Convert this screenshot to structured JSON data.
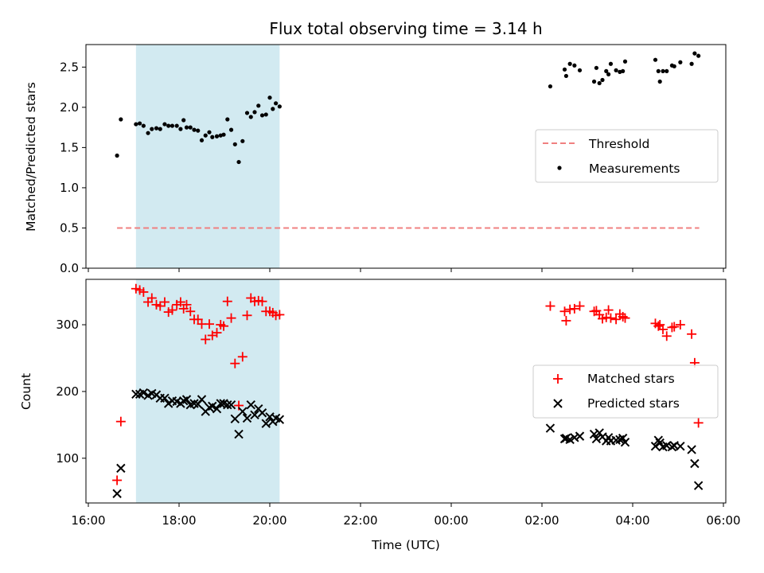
{
  "chart_data": [
    {
      "type": "scatter",
      "title": "Flux total observing time = 3.14 h",
      "xlabel": "",
      "ylabel": "Matched/Predicted stars",
      "ylim": [
        0,
        2.78
      ],
      "xlim": [
        "16:00",
        "06:00"
      ],
      "xticks": [
        "16:00",
        "18:00",
        "20:00",
        "22:00",
        "00:00",
        "02:00",
        "04:00",
        "06:00"
      ],
      "yticks": [
        "0.0",
        "0.5",
        "1.0",
        "1.5",
        "2.0",
        "2.5"
      ],
      "yticks_values": [
        0,
        0.5,
        1.0,
        1.5,
        2.0,
        2.5
      ],
      "shaded_region": {
        "from": "17:03",
        "to": "20:13",
        "color": "#add8e6"
      },
      "legend_position": "center-right",
      "threshold": {
        "name": "Threshold",
        "value": 0.5,
        "from": "16:38",
        "to": "05:28",
        "color": "#f08080",
        "style": "dashed"
      },
      "series": [
        {
          "name": "Measurements",
          "color": "#000000",
          "marker": "dot",
          "points": [
            [
              "16:38",
              1.4
            ],
            [
              "16:43",
              1.85
            ],
            [
              "17:03",
              1.79
            ],
            [
              "17:08",
              1.8
            ],
            [
              "17:13",
              1.77
            ],
            [
              "17:19",
              1.68
            ],
            [
              "17:24",
              1.73
            ],
            [
              "17:30",
              1.74
            ],
            [
              "17:35",
              1.73
            ],
            [
              "17:41",
              1.79
            ],
            [
              "17:46",
              1.77
            ],
            [
              "17:51",
              1.77
            ],
            [
              "17:57",
              1.77
            ],
            [
              "18:02",
              1.73
            ],
            [
              "18:06",
              1.84
            ],
            [
              "18:10",
              1.75
            ],
            [
              "18:15",
              1.75
            ],
            [
              "18:20",
              1.72
            ],
            [
              "18:25",
              1.71
            ],
            [
              "18:30",
              1.59
            ],
            [
              "18:35",
              1.65
            ],
            [
              "18:40",
              1.69
            ],
            [
              "18:44",
              1.63
            ],
            [
              "18:50",
              1.64
            ],
            [
              "18:55",
              1.65
            ],
            [
              "18:59",
              1.66
            ],
            [
              "19:04",
              1.85
            ],
            [
              "19:09",
              1.72
            ],
            [
              "19:14",
              1.54
            ],
            [
              "19:19",
              1.32
            ],
            [
              "19:24",
              1.58
            ],
            [
              "19:30",
              1.93
            ],
            [
              "19:35",
              1.88
            ],
            [
              "19:40",
              1.94
            ],
            [
              "19:45",
              2.02
            ],
            [
              "19:50",
              1.9
            ],
            [
              "19:55",
              1.91
            ],
            [
              "20:00",
              2.12
            ],
            [
              "20:04",
              1.98
            ],
            [
              "20:08",
              2.05
            ],
            [
              "20:13",
              2.01
            ],
            [
              "02:11",
              2.26
            ],
            [
              "02:30",
              2.47
            ],
            [
              "02:32",
              2.39
            ],
            [
              "02:37",
              2.54
            ],
            [
              "02:43",
              2.52
            ],
            [
              "02:50",
              2.46
            ],
            [
              "03:09",
              2.32
            ],
            [
              "03:12",
              2.49
            ],
            [
              "03:16",
              2.3
            ],
            [
              "03:20",
              2.34
            ],
            [
              "03:25",
              2.45
            ],
            [
              "03:28",
              2.41
            ],
            [
              "03:31",
              2.54
            ],
            [
              "03:38",
              2.46
            ],
            [
              "03:43",
              2.44
            ],
            [
              "03:47",
              2.45
            ],
            [
              "03:50",
              2.57
            ],
            [
              "04:30",
              2.59
            ],
            [
              "04:34",
              2.45
            ],
            [
              "04:36",
              2.32
            ],
            [
              "04:40",
              2.45
            ],
            [
              "04:45",
              2.45
            ],
            [
              "04:52",
              2.52
            ],
            [
              "04:55",
              2.51
            ],
            [
              "05:03",
              2.56
            ],
            [
              "05:18",
              2.54
            ],
            [
              "05:22",
              2.67
            ],
            [
              "05:27",
              2.64
            ]
          ]
        }
      ]
    },
    {
      "type": "scatter",
      "title": "",
      "xlabel": "Time (UTC)",
      "ylabel": "Count",
      "ylim": [
        33,
        368
      ],
      "xlim": [
        "16:00",
        "06:00"
      ],
      "xticks": [
        "16:00",
        "18:00",
        "20:00",
        "22:00",
        "00:00",
        "02:00",
        "04:00",
        "06:00"
      ],
      "yticks": [
        "100",
        "200",
        "300"
      ],
      "yticks_values": [
        100,
        200,
        300
      ],
      "shaded_region": {
        "from": "17:03",
        "to": "20:13",
        "color": "#add8e6"
      },
      "legend_position": "center-right",
      "series": [
        {
          "name": "Matched stars",
          "color": "#ff0000",
          "marker": "plus",
          "points": [
            [
              "16:38",
              67
            ],
            [
              "16:43",
              155
            ],
            [
              "17:03",
              354
            ],
            [
              "17:08",
              352
            ],
            [
              "17:13",
              349
            ],
            [
              "17:19",
              334
            ],
            [
              "17:24",
              340
            ],
            [
              "17:30",
              330
            ],
            [
              "17:35",
              328
            ],
            [
              "17:41",
              334
            ],
            [
              "17:46",
              319
            ],
            [
              "17:51",
              322
            ],
            [
              "17:57",
              330
            ],
            [
              "18:02",
              334
            ],
            [
              "18:06",
              324
            ],
            [
              "18:10",
              330
            ],
            [
              "18:15",
              320
            ],
            [
              "18:20",
              308
            ],
            [
              "18:25",
              308
            ],
            [
              "18:30",
              301
            ],
            [
              "18:35",
              278
            ],
            [
              "18:40",
              301
            ],
            [
              "18:44",
              284
            ],
            [
              "18:50",
              288
            ],
            [
              "18:55",
              300
            ],
            [
              "18:59",
              298
            ],
            [
              "19:04",
              335
            ],
            [
              "19:09",
              310
            ],
            [
              "19:14",
              242
            ],
            [
              "19:19",
              179
            ],
            [
              "19:24",
              252
            ],
            [
              "19:30",
              314
            ],
            [
              "19:35",
              340
            ],
            [
              "19:40",
              335
            ],
            [
              "19:45",
              336
            ],
            [
              "19:50",
              335
            ],
            [
              "19:55",
              320
            ],
            [
              "20:00",
              320
            ],
            [
              "20:04",
              318
            ],
            [
              "20:08",
              314
            ],
            [
              "20:13",
              315
            ],
            [
              "02:11",
              328
            ],
            [
              "02:30",
              320
            ],
            [
              "02:32",
              306
            ],
            [
              "02:37",
              323
            ],
            [
              "02:43",
              324
            ],
            [
              "02:50",
              328
            ],
            [
              "03:09",
              320
            ],
            [
              "03:12",
              321
            ],
            [
              "03:16",
              315
            ],
            [
              "03:20",
              309
            ],
            [
              "03:25",
              311
            ],
            [
              "03:28",
              322
            ],
            [
              "03:31",
              310
            ],
            [
              "03:38",
              308
            ],
            [
              "03:43",
              316
            ],
            [
              "03:47",
              312
            ],
            [
              "03:50",
              310
            ],
            [
              "04:30",
              302
            ],
            [
              "04:34",
              298
            ],
            [
              "04:36",
              300
            ],
            [
              "04:40",
              293
            ],
            [
              "04:45",
              283
            ],
            [
              "04:52",
              296
            ],
            [
              "04:55",
              297
            ],
            [
              "05:03",
              300
            ],
            [
              "05:18",
              286
            ],
            [
              "05:22",
              243
            ],
            [
              "05:27",
              153
            ]
          ]
        },
        {
          "name": "Predicted stars",
          "color": "#000000",
          "marker": "x",
          "points": [
            [
              "16:38",
              47
            ],
            [
              "16:43",
              85
            ],
            [
              "17:03",
              196
            ],
            [
              "17:08",
              196
            ],
            [
              "17:13",
              198
            ],
            [
              "17:19",
              194
            ],
            [
              "17:24",
              197
            ],
            [
              "17:30",
              195
            ],
            [
              "17:35",
              190
            ],
            [
              "17:41",
              190
            ],
            [
              "17:46",
              182
            ],
            [
              "17:51",
              186
            ],
            [
              "17:57",
              185
            ],
            [
              "18:02",
              182
            ],
            [
              "18:06",
              186
            ],
            [
              "18:10",
              188
            ],
            [
              "18:15",
              180
            ],
            [
              "18:20",
              182
            ],
            [
              "18:25",
              181
            ],
            [
              "18:30",
              188
            ],
            [
              "18:35",
              170
            ],
            [
              "18:40",
              176
            ],
            [
              "18:44",
              178
            ],
            [
              "18:50",
              174
            ],
            [
              "18:55",
              182
            ],
            [
              "18:59",
              182
            ],
            [
              "19:04",
              180
            ],
            [
              "19:09",
              180
            ],
            [
              "19:14",
              159
            ],
            [
              "19:19",
              136
            ],
            [
              "19:24",
              170
            ],
            [
              "19:30",
              160
            ],
            [
              "19:35",
              180
            ],
            [
              "19:40",
              165
            ],
            [
              "19:45",
              174
            ],
            [
              "19:50",
              168
            ],
            [
              "19:55",
              152
            ],
            [
              "20:00",
              162
            ],
            [
              "20:04",
              155
            ],
            [
              "20:08",
              160
            ],
            [
              "20:13",
              158
            ],
            [
              "02:11",
              145
            ],
            [
              "02:30",
              129
            ],
            [
              "02:32",
              130
            ],
            [
              "02:37",
              128
            ],
            [
              "02:43",
              131
            ],
            [
              "02:50",
              133
            ],
            [
              "03:09",
              136
            ],
            [
              "03:12",
              129
            ],
            [
              "03:16",
              138
            ],
            [
              "03:20",
              132
            ],
            [
              "03:25",
              126
            ],
            [
              "03:28",
              131
            ],
            [
              "03:31",
              126
            ],
            [
              "03:38",
              127
            ],
            [
              "03:43",
              128
            ],
            [
              "03:47",
              130
            ],
            [
              "03:50",
              124
            ],
            [
              "04:30",
              118
            ],
            [
              "04:34",
              127
            ],
            [
              "04:36",
              123
            ],
            [
              "04:40",
              117
            ],
            [
              "04:45",
              119
            ],
            [
              "04:52",
              117
            ],
            [
              "04:55",
              119
            ],
            [
              "05:03",
              118
            ],
            [
              "05:18",
              113
            ],
            [
              "05:22",
              92
            ],
            [
              "05:27",
              59
            ]
          ]
        }
      ]
    }
  ]
}
